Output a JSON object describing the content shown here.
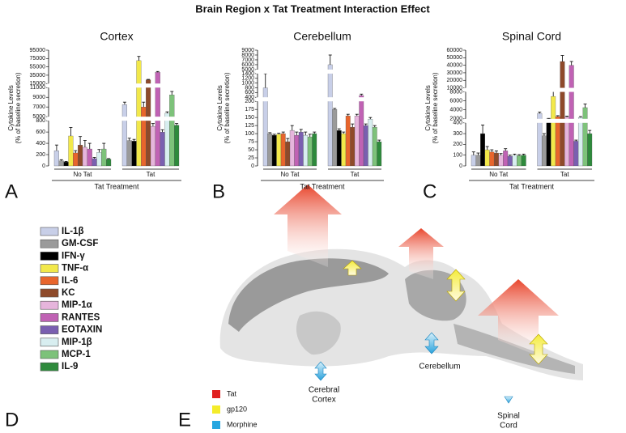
{
  "title": "Brain  Region x Tat Treatment Interaction  Effect",
  "legend": {
    "letter": "D",
    "names": [
      "IL-1β",
      "GM-CSF",
      "IFN-γ",
      "TNF-α",
      "IL-6",
      "KC",
      "MIP-1α",
      "RANTES",
      "EOTAXIN",
      "MIP-1β",
      "MCP-1",
      "IL-9"
    ],
    "colors": [
      "#c8cfe8",
      "#9a9a9a",
      "#000000",
      "#f2e84a",
      "#e8652c",
      "#8e4a2a",
      "#e6b5dc",
      "#c062b4",
      "#7a5fb0",
      "#d8eef0",
      "#7dc27a",
      "#2e8a3c"
    ]
  },
  "chart_data": [
    {
      "type": "bar",
      "title": "Cortex",
      "letter": "A",
      "ylabel": [
        "Cytokine Levels",
        "(% of baseline secretion)"
      ],
      "xlabel": "Tat Treatment",
      "categories": [
        "No Tat",
        "Tat"
      ],
      "segments": [
        {
          "ylim": [
            0,
            800
          ],
          "yticks": [
            0,
            200,
            400,
            600,
            800
          ]
        },
        {
          "ylim": [
            5000,
            11000
          ],
          "yticks": [
            5000,
            7000,
            9000,
            11000
          ]
        },
        {
          "ylim": [
            15000,
            95000
          ],
          "yticks": [
            15000,
            35000,
            55000,
            75000,
            95000
          ]
        }
      ],
      "series": [
        {
          "values": [
            270,
            7500
          ],
          "errors": [
            100,
            500
          ]
        },
        {
          "values": [
            90,
            450
          ],
          "errors": [
            20,
            40
          ]
        },
        {
          "values": [
            70,
            440
          ],
          "errors": [
            10,
            30
          ]
        },
        {
          "values": [
            530,
            70000
          ],
          "errors": [
            150,
            10000
          ]
        },
        {
          "values": [
            230,
            7000
          ],
          "errors": [
            40,
            1000
          ]
        },
        {
          "values": [
            370,
            24000
          ],
          "errors": [
            150,
            1000
          ]
        },
        {
          "values": [
            330,
            700
          ],
          "errors": [
            120,
            50
          ]
        },
        {
          "values": [
            300,
            42000
          ],
          "errors": [
            100,
            2000
          ]
        },
        {
          "values": [
            130,
            600
          ],
          "errors": [
            20,
            40
          ]
        },
        {
          "values": [
            240,
            5700
          ],
          "errors": [
            50,
            300
          ]
        },
        {
          "values": [
            300,
            9500
          ],
          "errors": [
            100,
            700
          ]
        },
        {
          "values": [
            120,
            720
          ],
          "errors": [
            10,
            30
          ]
        }
      ]
    },
    {
      "type": "bar",
      "title": "Cerebellum",
      "letter": "B",
      "ylabel": [
        "Cytokine Levels",
        "(% of baseline secretion)"
      ],
      "xlabel": "Tat Treatment",
      "categories": [
        "No Tat",
        "Tat"
      ],
      "segments": [
        {
          "ylim": [
            0,
            200
          ],
          "yticks": [
            0,
            25,
            50,
            75,
            100,
            125,
            150,
            175,
            200
          ]
        },
        {
          "ylim": [
            400,
            1400
          ],
          "yticks": [
            400,
            600,
            800,
            1000,
            1200,
            1400
          ]
        },
        {
          "ylim": [
            5000,
            9000
          ],
          "yticks": [
            5000,
            6000,
            7000,
            8000,
            9000
          ]
        }
      ],
      "series": [
        {
          "values": [
            800,
            6000
          ],
          "errors": [
            600,
            2000
          ]
        },
        {
          "values": [
            100,
            175
          ],
          "errors": [
            3,
            3
          ]
        },
        {
          "values": [
            95,
            110
          ],
          "errors": [
            3,
            5
          ]
        },
        {
          "values": [
            98,
            100
          ],
          "errors": [
            3,
            5
          ]
        },
        {
          "values": [
            100,
            155
          ],
          "errors": [
            5,
            5
          ]
        },
        {
          "values": [
            75,
            120
          ],
          "errors": [
            10,
            10
          ]
        },
        {
          "values": [
            110,
            155
          ],
          "errors": [
            15,
            5
          ]
        },
        {
          "values": [
            95,
            475
          ],
          "errors": [
            10,
            60
          ]
        },
        {
          "values": [
            105,
            125
          ],
          "errors": [
            8,
            5
          ]
        },
        {
          "values": [
            95,
            145
          ],
          "errors": [
            10,
            5
          ]
        },
        {
          "values": [
            90,
            120
          ],
          "errors": [
            8,
            5
          ]
        },
        {
          "values": [
            100,
            75
          ],
          "errors": [
            5,
            5
          ]
        }
      ]
    },
    {
      "type": "bar",
      "title": "Spinal Cord",
      "letter": "C",
      "ylabel": [
        "Cytokine Levels",
        "(% of baseline secretion)"
      ],
      "xlabel": "Tat Treatment",
      "categories": [
        "No Tat",
        "Tat"
      ],
      "segments": [
        {
          "ylim": [
            0,
            400
          ],
          "yticks": [
            0,
            100,
            200,
            300,
            400
          ]
        },
        {
          "ylim": [
            2000,
            8000
          ],
          "yticks": [
            2000,
            4000,
            6000,
            8000
          ]
        },
        {
          "ylim": [
            10000,
            60000
          ],
          "yticks": [
            10000,
            20000,
            30000,
            40000,
            50000,
            60000
          ]
        }
      ],
      "series": [
        {
          "values": [
            100,
            3200
          ],
          "errors": [
            30,
            300
          ]
        },
        {
          "values": [
            100,
            280
          ],
          "errors": [
            20,
            20
          ]
        },
        {
          "values": [
            300,
            2000
          ],
          "errors": [
            80,
            100
          ]
        },
        {
          "values": [
            150,
            7000
          ],
          "errors": [
            30,
            2000
          ]
        },
        {
          "values": [
            130,
            2500
          ],
          "errors": [
            20,
            200
          ]
        },
        {
          "values": [
            120,
            45000
          ],
          "errors": [
            20,
            8000
          ]
        },
        {
          "values": [
            100,
            2400
          ],
          "errors": [
            15,
            200
          ]
        },
        {
          "values": [
            140,
            40000
          ],
          "errors": [
            20,
            5000
          ]
        },
        {
          "values": [
            90,
            230
          ],
          "errors": [
            10,
            10
          ]
        },
        {
          "values": [
            100,
            2300
          ],
          "errors": [
            10,
            200
          ]
        },
        {
          "values": [
            95,
            4500
          ],
          "errors": [
            10,
            800
          ]
        },
        {
          "values": [
            100,
            300
          ],
          "errors": [
            10,
            30
          ]
        }
      ]
    }
  ],
  "panel_e": {
    "letter": "E",
    "regions": [
      [
        "Cerebral",
        "Cortex"
      ],
      [
        "Cerebellum"
      ],
      [
        "Spinal",
        "Cord"
      ]
    ],
    "legend": [
      "Tat",
      "gp120",
      "Morphine"
    ]
  }
}
